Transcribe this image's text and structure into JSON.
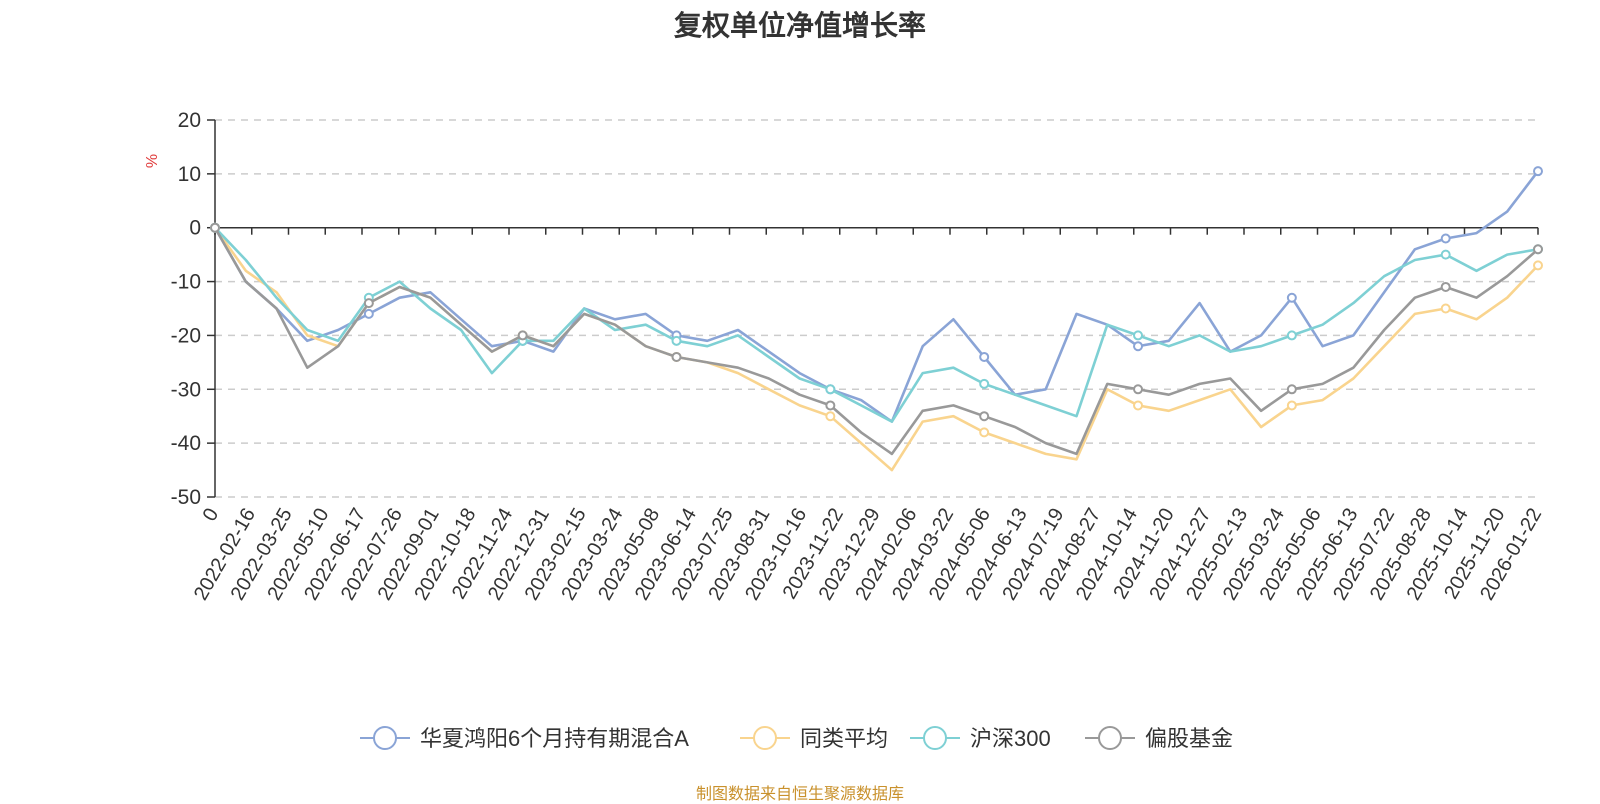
{
  "chart_data": {
    "type": "line",
    "title": "复权单位净值增长率",
    "ylabel": "%",
    "ylim": [
      -50,
      20
    ],
    "yticks": [
      20,
      10,
      0,
      -10,
      -20,
      -30,
      -40,
      -50
    ],
    "grid": true,
    "legend_position": "bottom",
    "x_tick_labels": [
      "0",
      "2022-02-16",
      "2022-03-25",
      "2022-05-10",
      "2022-06-17",
      "2022-07-26",
      "2022-09-01",
      "2022-10-18",
      "2022-11-24",
      "2022-12-31",
      "2023-02-15",
      "2023-03-24",
      "2023-05-08",
      "2023-06-14",
      "2023-07-25",
      "2023-08-31",
      "2023-10-16",
      "2023-11-22",
      "2023-12-29",
      "2024-02-06",
      "2024-03-22",
      "2024-05-06",
      "2024-06-13",
      "2024-07-19",
      "2024-08-27",
      "2024-10-14",
      "2024-11-20",
      "2024-12-27",
      "2025-02-13",
      "2025-03-24",
      "2025-05-06",
      "2025-06-13",
      "2025-07-22",
      "2025-08-28",
      "2025-10-14",
      "2025-11-20",
      "2026-01-22"
    ],
    "series": [
      {
        "name": "华夏鸿阳6个月持有期混合A",
        "color": "#8aa4d6",
        "values": [
          0,
          -10,
          -15,
          -21,
          -19,
          -16,
          -13,
          -12,
          -17,
          -22,
          -21,
          -23,
          -15,
          -17,
          -16,
          -20,
          -21,
          -19,
          -23,
          -27,
          -30,
          -32,
          -36,
          -22,
          -17,
          -24,
          -31,
          -30,
          -16,
          -18,
          -22,
          -21,
          -14,
          -23,
          -20,
          -13,
          -22,
          -20,
          -12,
          -4,
          -2,
          -1,
          3,
          10.5
        ]
      },
      {
        "name": "同类平均",
        "color": "#f9d48e",
        "values": [
          0,
          -8,
          -12,
          -20,
          -22,
          -14,
          -11,
          -13,
          -18,
          -23,
          -20,
          -22,
          -16,
          -18,
          -22,
          -24,
          -25,
          -27,
          -30,
          -33,
          -35,
          -40,
          -45,
          -36,
          -35,
          -38,
          -40,
          -42,
          -43,
          -30,
          -33,
          -34,
          -32,
          -30,
          -37,
          -33,
          -32,
          -28,
          -22,
          -16,
          -15,
          -17,
          -13,
          -7
        ]
      },
      {
        "name": "沪深300",
        "color": "#7ed0d4",
        "values": [
          0,
          -6,
          -13,
          -19,
          -21,
          -13,
          -10,
          -15,
          -19,
          -27,
          -21,
          -21,
          -15,
          -19,
          -18,
          -21,
          -22,
          -20,
          -24,
          -28,
          -30,
          -33,
          -36,
          -27,
          -26,
          -29,
          -31,
          -33,
          -35,
          -18,
          -20,
          -22,
          -20,
          -23,
          -22,
          -20,
          -18,
          -14,
          -9,
          -6,
          -5,
          -8,
          -5,
          -4
        ]
      },
      {
        "name": "偏股基金",
        "color": "#999999",
        "values": [
          0,
          -10,
          -15,
          -26,
          -22,
          -14,
          -11,
          -13,
          -18,
          -23,
          -20,
          -22,
          -16,
          -18,
          -22,
          -24,
          -25,
          -26,
          -28,
          -31,
          -33,
          -38,
          -42,
          -34,
          -33,
          -35,
          -37,
          -40,
          -42,
          -29,
          -30,
          -31,
          -29,
          -28,
          -34,
          -30,
          -29,
          -26,
          -19,
          -13,
          -11,
          -13,
          -9,
          -4
        ]
      }
    ]
  },
  "footer": {
    "source_note": "制图数据来自恒生聚源数据库"
  }
}
